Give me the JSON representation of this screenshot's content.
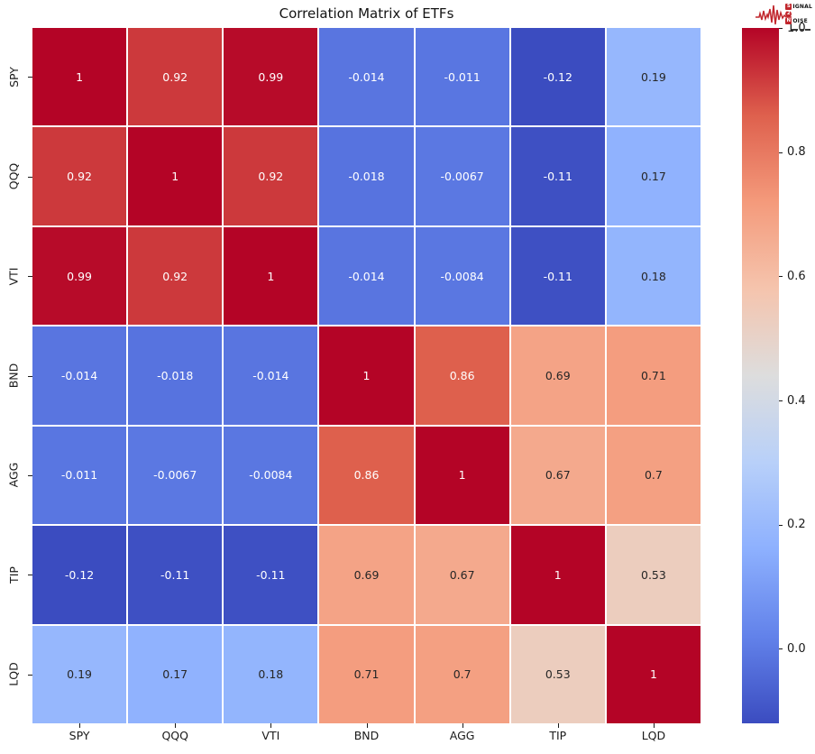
{
  "chart_data": {
    "type": "heatmap",
    "title": "Correlation Matrix of ETFs",
    "x_labels": [
      "SPY",
      "QQQ",
      "VTI",
      "BND",
      "AGG",
      "TIP",
      "LQD"
    ],
    "y_labels": [
      "SPY",
      "QQQ",
      "VTI",
      "BND",
      "AGG",
      "TIP",
      "LQD"
    ],
    "matrix": [
      [
        1,
        0.92,
        0.99,
        -0.014,
        -0.011,
        -0.12,
        0.19
      ],
      [
        0.92,
        1,
        0.92,
        -0.018,
        -0.0067,
        -0.11,
        0.17
      ],
      [
        0.99,
        0.92,
        1,
        -0.014,
        -0.0084,
        -0.11,
        0.18
      ],
      [
        -0.014,
        -0.018,
        -0.014,
        1,
        0.86,
        0.69,
        0.71
      ],
      [
        -0.011,
        -0.0067,
        -0.0084,
        0.86,
        1,
        0.67,
        0.7
      ],
      [
        -0.12,
        -0.11,
        -0.11,
        0.69,
        0.67,
        1,
        0.53
      ],
      [
        0.19,
        0.17,
        0.18,
        0.71,
        0.7,
        0.53,
        1
      ]
    ],
    "cell_labels": [
      [
        "1",
        "0.92",
        "0.99",
        "-0.014",
        "-0.011",
        "-0.12",
        "0.19"
      ],
      [
        "0.92",
        "1",
        "0.92",
        "-0.018",
        "-0.0067",
        "-0.11",
        "0.17"
      ],
      [
        "0.99",
        "0.92",
        "1",
        "-0.014",
        "-0.0084",
        "-0.11",
        "0.18"
      ],
      [
        "-0.014",
        "-0.018",
        "-0.014",
        "1",
        "0.86",
        "0.69",
        "0.71"
      ],
      [
        "-0.011",
        "-0.0067",
        "-0.0084",
        "0.86",
        "1",
        "0.67",
        "0.7"
      ],
      [
        "-0.12",
        "-0.11",
        "-0.11",
        "0.69",
        "0.67",
        "1",
        "0.53"
      ],
      [
        "0.19",
        "0.17",
        "0.18",
        "0.71",
        "0.7",
        "0.53",
        "1"
      ]
    ],
    "colormap": "coolwarm",
    "vmin": -0.12,
    "vmax": 1.0,
    "grid_line_color": "#ffffff",
    "legend_position": "right-colorbar",
    "colorbar_ticks": [
      {
        "label": "1.0",
        "value": 1.0
      },
      {
        "label": "0.8",
        "value": 0.8
      },
      {
        "label": "0.6",
        "value": 0.6
      },
      {
        "label": "0.4",
        "value": 0.4
      },
      {
        "label": "0.2",
        "value": 0.2
      },
      {
        "label": "0.0",
        "value": 0.0
      }
    ]
  },
  "logo": {
    "brand_color": "#c1272d",
    "signal_initial": "S",
    "signal_rest": "IGNAL",
    "two": "2",
    "noise_initial": "N",
    "noise_rest": "OISE"
  }
}
